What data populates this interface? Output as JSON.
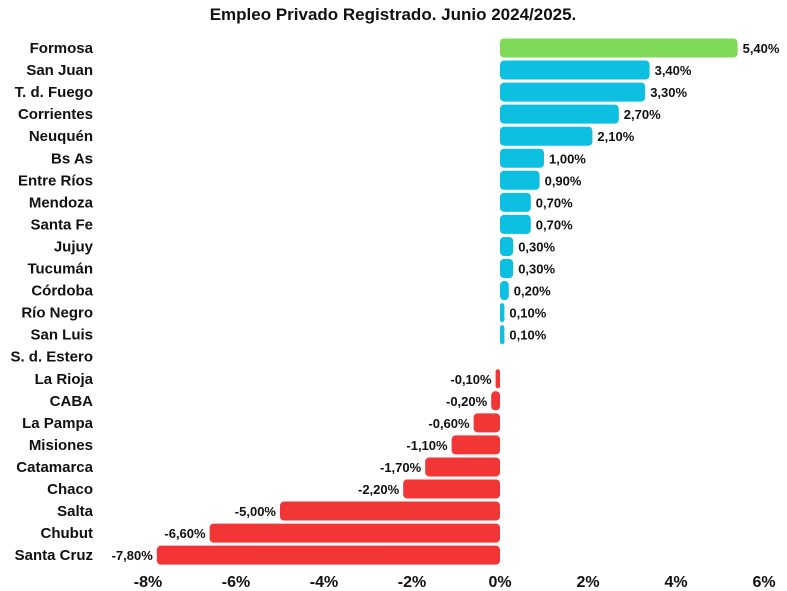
{
  "chart_data": {
    "type": "bar",
    "orientation": "horizontal",
    "title": "Empleo Privado Registrado. Junio 2024/2025.",
    "xlabel": "",
    "ylabel": "",
    "xlim": [
      -8,
      6
    ],
    "grid": false,
    "categories": [
      "Formosa",
      "San Juan",
      "T. d. Fuego",
      "Corrientes",
      "Neuquén",
      "Bs As",
      "Entre Ríos",
      "Mendoza",
      "Santa Fe",
      "Jujuy",
      "Tucumán",
      "Córdoba",
      "Río Negro",
      "San Luis",
      "S. d. Estero",
      "La Rioja",
      "CABA",
      "La Pampa",
      "Misiones",
      "Catamarca",
      "Chaco",
      "Salta",
      "Chubut",
      "Santa Cruz"
    ],
    "values": [
      5.4,
      3.4,
      3.3,
      2.7,
      2.1,
      1.0,
      0.9,
      0.7,
      0.7,
      0.3,
      0.3,
      0.2,
      0.1,
      0.1,
      0,
      -0.1,
      -0.2,
      -0.6,
      -1.1,
      -1.7,
      -2.2,
      -5.0,
      -6.6,
      -7.8
    ],
    "value_labels": [
      "5,40%",
      "3,40%",
      "3,30%",
      "2,70%",
      "2,10%",
      "1,00%",
      "0,90%",
      "0,70%",
      "0,70%",
      "0,30%",
      "0,30%",
      "0,20%",
      "0,10%",
      "0,10%",
      "",
      "-0,10%",
      "-0,20%",
      "-0,60%",
      "-1,10%",
      "-1,70%",
      "-2,20%",
      "-5,00%",
      "-6,60%",
      "-7,80%"
    ],
    "ticks": [
      -8,
      -6,
      -4,
      -2,
      0,
      2,
      4,
      6
    ],
    "tick_labels": [
      "-8%",
      "-6%",
      "-4%",
      "-2%",
      "0%",
      "2%",
      "4%",
      "6%"
    ],
    "highlight_index": 0,
    "colors": {
      "highlight": "#7ED957",
      "positive": "#0DBFE0",
      "negative": "#F23535"
    }
  }
}
